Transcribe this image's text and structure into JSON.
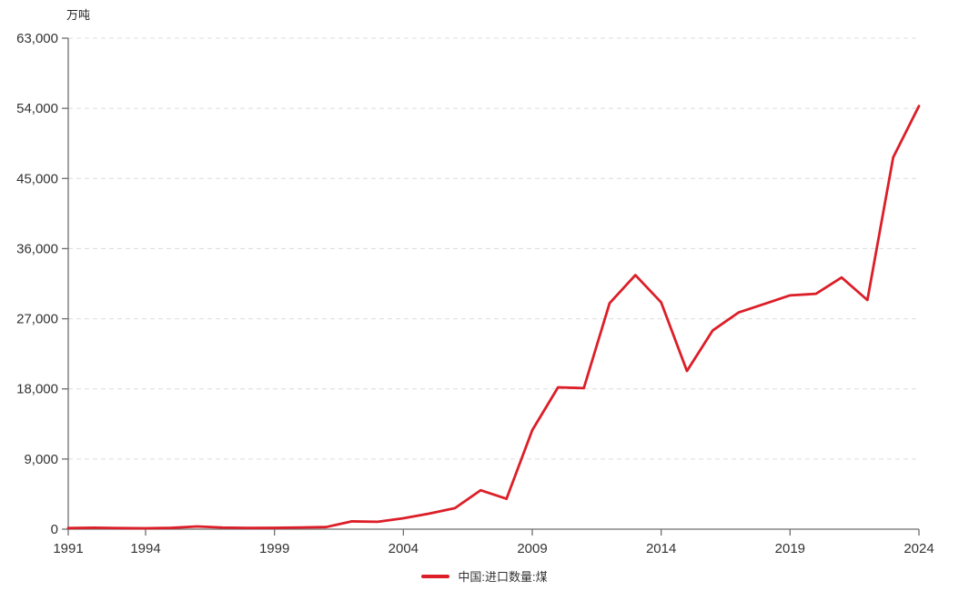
{
  "chart_data": {
    "type": "line",
    "title": "",
    "unit_label": "万吨",
    "x": [
      1991,
      1992,
      1993,
      1994,
      1995,
      1996,
      1997,
      1998,
      1999,
      2000,
      2001,
      2002,
      2003,
      2004,
      2005,
      2006,
      2007,
      2008,
      2009,
      2010,
      2011,
      2012,
      2013,
      2014,
      2015,
      2016,
      2017,
      2018,
      2019,
      2020,
      2021,
      2022,
      2023,
      2024
    ],
    "series": [
      {
        "name": "中国:进口数量:煤",
        "color": "#dc1e28",
        "values": [
          140,
          190,
          140,
          120,
          170,
          350,
          200,
          160,
          170,
          220,
          270,
          1000,
          950,
          1400,
          2000,
          2700,
          5000,
          3900,
          12700,
          18200,
          18100,
          29000,
          32600,
          29100,
          20300,
          25500,
          27800,
          28900,
          30000,
          30200,
          32300,
          29400,
          47700,
          54300
        ]
      }
    ],
    "xlim": [
      1991,
      2024
    ],
    "ylim": [
      0,
      63000
    ],
    "x_ticks": [
      1991,
      1994,
      1999,
      2004,
      2009,
      2014,
      2019,
      2024
    ],
    "y_ticks": [
      0,
      9000,
      18000,
      27000,
      36000,
      45000,
      54000,
      63000
    ],
    "grid": "horizontal-dashed",
    "legend_position": "bottom-center",
    "colors": {
      "line": "#dc1e28",
      "axis": "#6e6e6e",
      "grid": "#dcdcdc",
      "text": "#333333",
      "background": "#ffffff"
    }
  }
}
